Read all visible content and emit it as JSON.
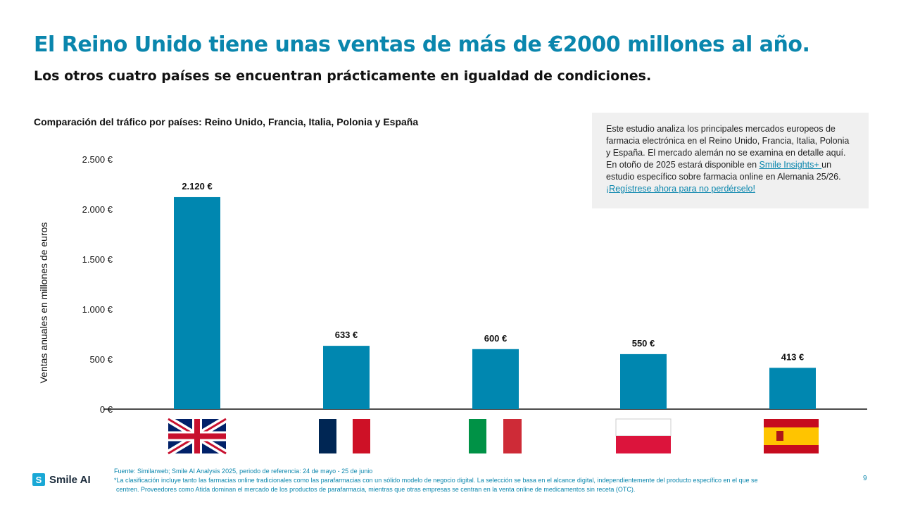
{
  "header": {
    "title": "El Reino Unido tiene unas ventas de más de €2000 millones al año.",
    "subtitle": "Los otros cuatro países se encuentran prácticamente en igualdad de condiciones."
  },
  "info_box": {
    "text1": "Este estudio analiza los principales mercados europeos de farmacia electrónica en el Reino Unido, Francia, Italia, Polonia y España. El mercado alemán no se examina en detalle aquí. En otoño de 2025 estará disponible en ",
    "link1": "Smile Insights+ ",
    "text2": "un estudio específico sobre farmacia online en Alemania 25/26. ",
    "link2": "¡Regístrese ahora para no perdérselo!"
  },
  "chart_data": {
    "type": "bar",
    "title": "Comparación del tráfico por países: Reino Unido, Francia, Italia, Polonia y España",
    "ylabel": "Ventas anuales en millones de euros",
    "categories": [
      "Reino Unido",
      "Francia",
      "Italia",
      "Polonia",
      "España"
    ],
    "category_icons": [
      "flag-uk",
      "flag-france",
      "flag-italy",
      "flag-poland",
      "flag-spain"
    ],
    "values": [
      2120,
      633,
      600,
      550,
      413
    ],
    "data_labels": [
      "2.120 €",
      "633 €",
      "600 €",
      "550 €",
      "413 €"
    ],
    "ylim": [
      0,
      2500
    ],
    "yticks": [
      0,
      500,
      1000,
      1500,
      2000,
      2500
    ],
    "ytick_labels": [
      "0 €",
      "500 €",
      "1.000 €",
      "1.500 €",
      "2.000 €",
      "2.500 €"
    ],
    "bar_color": "#0087b0",
    "grid": false
  },
  "footer": {
    "source": "Fuente: Similarweb; Smile AI Analysis 2025, periodo de referencia: 24 de mayo - 25 de junio",
    "note1": "*La clasificación incluye tanto las farmacias online tradicionales como las parafarmacias con un sólido modelo de negocio digital. La selección se basa en el alcance digital, independientemente del producto específico en el que se",
    "note2": "centren. Proveedores como Atida dominan el mercado de los productos de parafarmacia, mientras que otras empresas se centran en la venta online de medicamentos sin receta (OTC).",
    "logo": "Smile AI",
    "page": "9"
  }
}
